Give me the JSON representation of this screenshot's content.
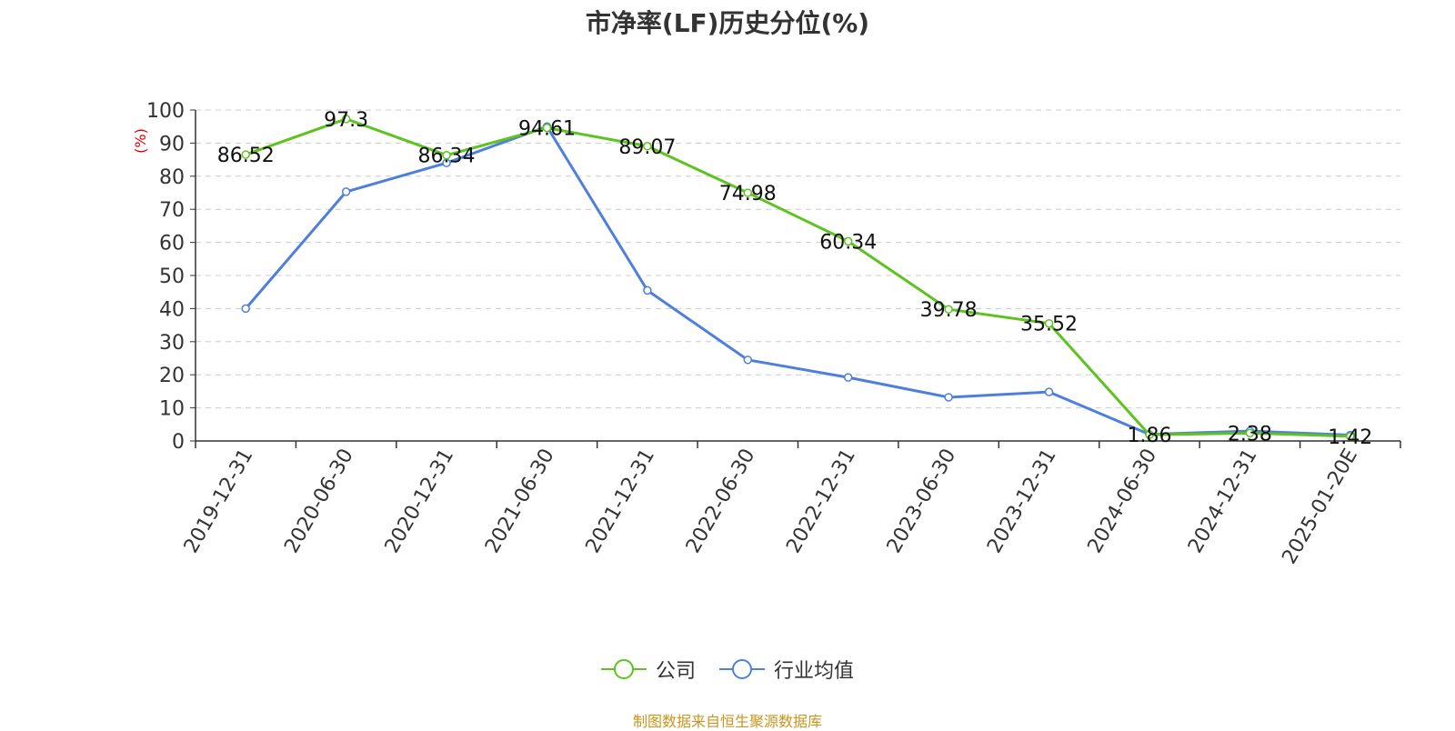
{
  "chart_data": {
    "type": "line",
    "title": "市净率(LF)历史分位(%)",
    "ylabel": "(%)",
    "ylim": [
      0,
      100
    ],
    "yticks": [
      0,
      10,
      20,
      30,
      40,
      50,
      60,
      70,
      80,
      90,
      100
    ],
    "grid": true,
    "legend_position": "bottom",
    "categories": [
      "2019-12-31",
      "2020-06-30",
      "2020-12-31",
      "2021-06-30",
      "2021-12-31",
      "2022-06-30",
      "2022-12-31",
      "2023-06-30",
      "2023-12-31",
      "2024-06-30",
      "2024-12-31",
      "2025-01-20E"
    ],
    "series": [
      {
        "name": "公司",
        "color": "#5cc31f",
        "values": [
          86.52,
          97.3,
          86.34,
          94.61,
          89.07,
          74.98,
          60.34,
          39.78,
          35.52,
          1.86,
          2.38,
          1.42
        ],
        "labels": [
          "86.52",
          "97.3",
          "86.34",
          "94.61",
          "89.07",
          "74.98",
          "60.34",
          "39.78",
          "35.52",
          "1.86",
          "2.38",
          "1.42"
        ]
      },
      {
        "name": "行业均值",
        "color": "#4e7fdc",
        "values": [
          40.0,
          75.3,
          84.0,
          95.0,
          45.5,
          24.5,
          19.2,
          13.2,
          14.8,
          2.0,
          3.0,
          1.8
        ]
      }
    ],
    "source_note": "制图数据来自恒生聚源数据库"
  }
}
